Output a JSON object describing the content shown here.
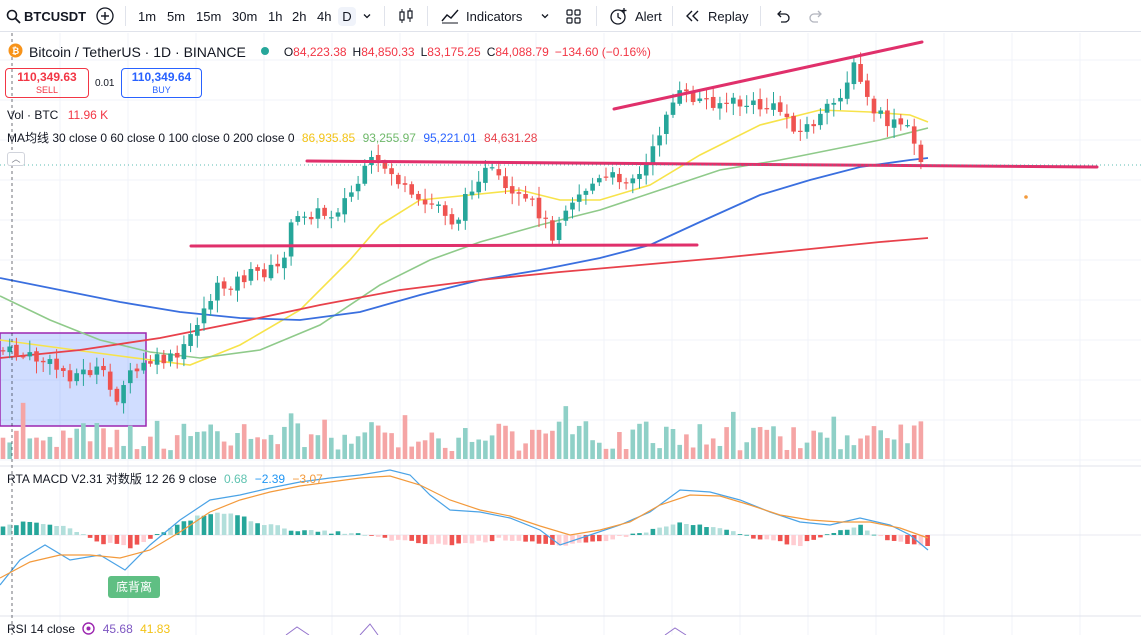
{
  "toolbar": {
    "symbol": "BTCUSDT",
    "timeframes": [
      "1m",
      "5m",
      "15m",
      "30m",
      "1h",
      "2h",
      "4h",
      "D"
    ],
    "active_timeframe": "D",
    "indicators_label": "Indicators",
    "alert_label": "Alert",
    "replay_label": "Replay"
  },
  "legend": {
    "title": "Bitcoin / TetherUS · 1D · BINANCE",
    "open_label": "O",
    "open": "84,223.38",
    "high_label": "H",
    "high": "84,850.33",
    "low_label": "L",
    "low": "83,175.25",
    "close_label": "C",
    "close": "84,088.79",
    "change": "−134.60 (−0.16%)"
  },
  "trade": {
    "sell_price": "110,349.63",
    "sell_label": "SELL",
    "buy_price": "110,349.64",
    "buy_label": "BUY",
    "spread": "0.01"
  },
  "volume_legend": {
    "label": "Vol · BTC",
    "value": "11.96 K"
  },
  "ma_legend": {
    "label": "MA均线 30 close 0 60 close 0 100 close 0 200 close 0",
    "values": [
      "86,935.85",
      "93,255.97",
      "95,221.01",
      "84,631.28"
    ]
  },
  "macd_legend": {
    "label": "RTA MACD V2.31 对数版 12 26 9 close",
    "values": [
      "0.68",
      "−2.39",
      "−3.07"
    ]
  },
  "rsi_legend": {
    "label": "RSI 14 close",
    "values": [
      "45.68",
      "41.83"
    ]
  },
  "divergence_badge": "底背离",
  "colors": {
    "up": "#26a69a",
    "down": "#ef5350",
    "vol_up": "#8fd0c7",
    "vol_down": "#f5a5a5",
    "ma30": "#f7e34a",
    "ma60": "#8fca8a",
    "ma100": "#3a6fdf",
    "ma200": "#e8414b",
    "trendline": "#e0306b",
    "macd": "#4ba3e6",
    "signal": "#f39a3c",
    "box": "#9c27b0"
  },
  "chart_data": {
    "type": "candlestick",
    "title": "Bitcoin / TetherUS · 1D · BINANCE",
    "series": [
      {
        "name": "BTCUSDT",
        "values": []
      }
    ]
  }
}
